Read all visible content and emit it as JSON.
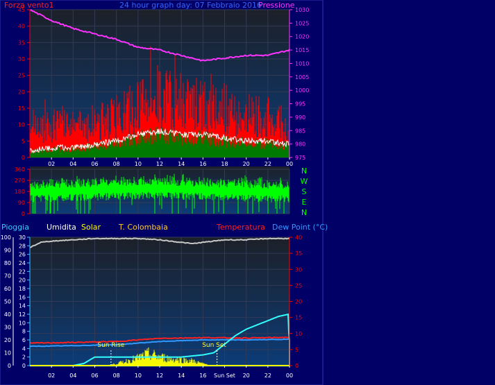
{
  "header": {
    "left_label": "Forza vento1",
    "title": "24 hour graph day: 07 Febbraio 2016",
    "right_label": "Pressione"
  },
  "legend": {
    "rain": "Pioggia",
    "humidity": "Umidita",
    "solar": "Solar",
    "tcol": "T. Colombaia",
    "temperature": "Temperatura",
    "dewpoint": "Dew Point (°C)"
  },
  "compass": [
    "N",
    "W",
    "S",
    "E",
    "N"
  ],
  "markers": {
    "sunrise": "Sun Rise",
    "sunset": "Sun Set"
  },
  "colors": {
    "background": "#000066",
    "plot_top": "#1c2028",
    "plot_bottom": "#0c3c78",
    "wind_gust": "#ff0000",
    "wind_avg": "#ffffff",
    "wind_low": "#007a00",
    "pressure": "#ff33ff",
    "direction": "#00ff00",
    "humidity": "#c8c8c8",
    "rain": "#33ccff",
    "solar": "#ffff00",
    "temperature": "#ff2020",
    "dewpoint": "#3399ff",
    "axis_left": "#ff0000",
    "axis_right": "#ff33ff"
  },
  "chart_data": [
    {
      "type": "bar",
      "title": "24 hour graph day: 07 Febbraio 2016",
      "xticks": [
        "02",
        "04",
        "06",
        "08",
        "10",
        "12",
        "14",
        "16",
        "18",
        "20",
        "22",
        "00"
      ],
      "x_range_hours": [
        0,
        24
      ],
      "y_left": {
        "label": "Forza vento1",
        "range": [
          0,
          45
        ],
        "ticks": [
          0,
          5,
          10,
          15,
          20,
          25,
          30,
          35,
          40,
          45
        ]
      },
      "y_right": {
        "label": "Pressione",
        "range": [
          975,
          1030
        ],
        "ticks": [
          975,
          980,
          985,
          990,
          995,
          1000,
          1005,
          1010,
          1015,
          1020,
          1025,
          1030
        ]
      },
      "series": [
        {
          "name": "wind_gust_envelope",
          "hours": [
            0,
            2,
            4,
            6,
            8,
            10,
            12,
            14,
            16,
            18,
            20,
            22,
            24
          ],
          "values": [
            10,
            13,
            12,
            14,
            16,
            20,
            24,
            22,
            20,
            19,
            17,
            16,
            8
          ]
        },
        {
          "name": "wind_avg",
          "hours": [
            0,
            2,
            4,
            6,
            8,
            10,
            12,
            14,
            16,
            18,
            20,
            22,
            24
          ],
          "values": [
            2,
            3,
            3,
            4,
            5,
            7,
            8,
            7,
            7,
            6,
            5,
            5,
            4
          ]
        },
        {
          "name": "pressure",
          "hours": [
            0,
            2,
            4,
            6,
            8,
            10,
            12,
            14,
            16,
            18,
            20,
            22,
            24
          ],
          "values": [
            1030,
            1026,
            1023,
            1021,
            1019,
            1016,
            1015,
            1013,
            1011,
            1012,
            1013,
            1013,
            1015
          ]
        }
      ]
    },
    {
      "type": "scatter",
      "xticks": [
        "02",
        "04",
        "06",
        "08",
        "10",
        "12",
        "14",
        "16",
        "18",
        "20",
        "22",
        "00"
      ],
      "y_range": [
        0,
        360
      ],
      "yticks": [
        0,
        90,
        180,
        270,
        360
      ],
      "series": [
        {
          "name": "wind_direction_median",
          "hours": [
            0,
            4,
            8,
            12,
            16,
            20,
            24
          ],
          "values": [
            200,
            210,
            220,
            230,
            215,
            205,
            200
          ]
        }
      ]
    },
    {
      "type": "line",
      "xticks": [
        "02",
        "04",
        "06",
        "08",
        "10",
        "12",
        "14",
        "16",
        "Sun Set",
        "20",
        "22",
        "00"
      ],
      "y_humidity": {
        "range": [
          0,
          100
        ],
        "ticks": [
          0,
          10,
          20,
          30,
          40,
          50,
          60,
          70,
          80,
          90,
          100
        ]
      },
      "y_rain": {
        "range": [
          0,
          30
        ],
        "ticks": [
          0,
          2,
          4,
          6,
          8,
          10,
          12,
          14,
          16,
          18,
          20,
          22,
          24,
          26,
          28,
          30
        ]
      },
      "y_temp": {
        "range": [
          0,
          40
        ],
        "ticks": [
          0,
          5,
          10,
          15,
          20,
          25,
          30,
          35,
          40
        ]
      },
      "series": [
        {
          "name": "humidity",
          "hours": [
            0,
            1,
            2,
            4,
            6,
            8,
            10,
            12,
            13,
            14,
            15,
            16,
            17,
            18,
            20,
            22,
            24
          ],
          "values": [
            92,
            96,
            97,
            98,
            99,
            99,
            99,
            98,
            97,
            96,
            95,
            96,
            97,
            98,
            98,
            99,
            99
          ]
        },
        {
          "name": "rain",
          "hours": [
            0,
            4,
            5,
            6,
            8,
            10,
            12,
            14,
            16,
            17,
            18,
            19,
            20,
            21,
            22,
            23,
            23.9,
            24
          ],
          "values": [
            0,
            0,
            0.5,
            2,
            2,
            2,
            2,
            2,
            2.5,
            3,
            5,
            7,
            8.5,
            9.5,
            10.5,
            11.5,
            12,
            0
          ]
        },
        {
          "name": "temperature",
          "hours": [
            0,
            4,
            8,
            12,
            16,
            20,
            24
          ],
          "values": [
            7,
            7.2,
            7.5,
            8.5,
            8.7,
            8.6,
            8.8
          ]
        },
        {
          "name": "dewpoint",
          "hours": [
            0,
            4,
            8,
            12,
            16,
            20,
            24
          ],
          "values": [
            6,
            6.2,
            6.5,
            7.5,
            8,
            8,
            8.2
          ]
        },
        {
          "name": "solar_peaks",
          "hours": [
            7,
            8,
            9,
            10,
            11,
            12,
            13,
            14,
            15,
            16,
            17
          ],
          "values": [
            0,
            2,
            5,
            8,
            12,
            9,
            7,
            6,
            5,
            2,
            0
          ]
        }
      ],
      "sunrise_hour": 7.5,
      "sunset_hour": 17.3
    }
  ]
}
